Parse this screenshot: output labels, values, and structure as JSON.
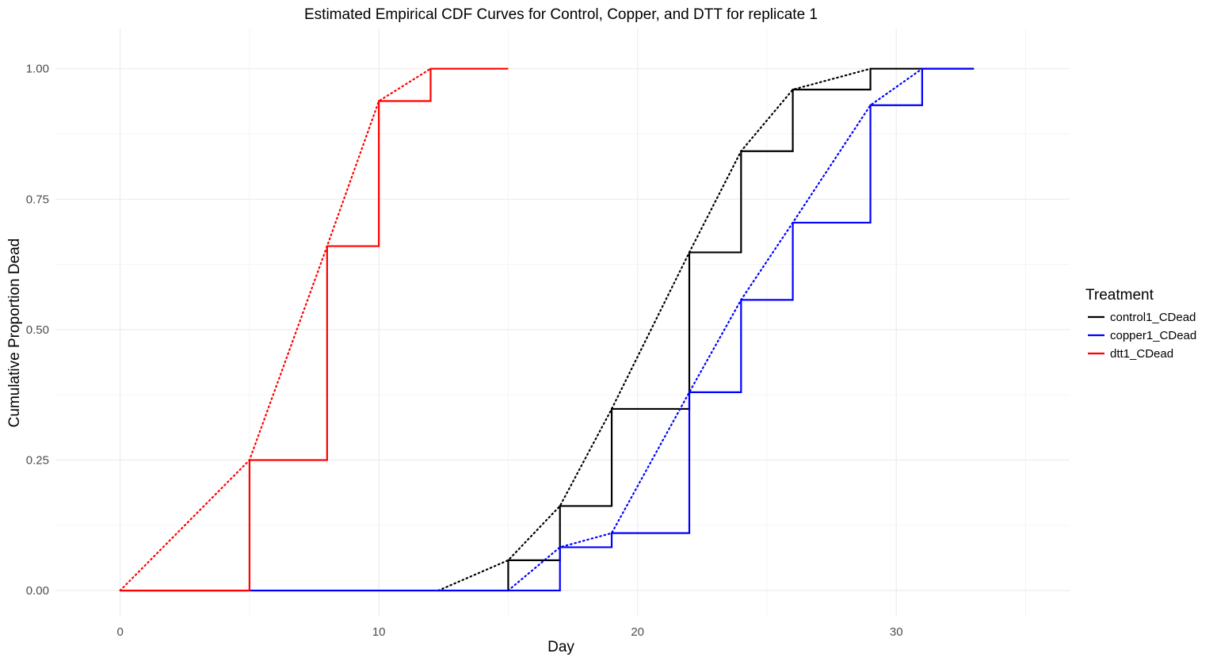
{
  "chart_data": {
    "type": "line",
    "title": "Estimated Empirical CDF Curves for Control, Copper, and DTT for replicate 1",
    "xlabel": "Day",
    "ylabel": "Cumulative Proportion Dead",
    "xlim": [
      -2.5,
      36.7
    ],
    "ylim": [
      -0.05,
      1.077
    ],
    "x_ticks": [
      0,
      10,
      20,
      30
    ],
    "x_tick_labels": [
      "0",
      "10",
      "20",
      "30"
    ],
    "y_ticks": [
      0,
      0.25,
      0.5,
      0.75,
      1.0
    ],
    "y_tick_labels": [
      "0.00",
      "0.25",
      "0.50",
      "0.75",
      "1.00"
    ],
    "grid": true,
    "legend": {
      "title": "Treatment",
      "position": "right"
    },
    "series": [
      {
        "name": "control1_CDead",
        "color": "#000000",
        "step": {
          "x": [
            0,
            15,
            17,
            19,
            22,
            24,
            26,
            29,
            33
          ],
          "y": [
            0,
            0.058,
            0.162,
            0.348,
            0.648,
            0.842,
            0.96,
            1.0,
            1.0
          ]
        },
        "dotted": {
          "x": [
            12.3,
            15,
            17,
            19,
            22,
            24,
            26,
            29
          ],
          "y": [
            0,
            0.058,
            0.162,
            0.348,
            0.648,
            0.842,
            0.96,
            1.0
          ]
        }
      },
      {
        "name": "copper1_CDead",
        "color": "#0000ff",
        "step": {
          "x": [
            0,
            17,
            19,
            22,
            24,
            26,
            29,
            31,
            33
          ],
          "y": [
            0,
            0.083,
            0.11,
            0.38,
            0.557,
            0.705,
            0.93,
            1.0,
            1.0
          ]
        },
        "dotted": {
          "x": [
            15,
            17,
            19,
            22,
            24,
            26,
            29,
            31
          ],
          "y": [
            0,
            0.083,
            0.11,
            0.38,
            0.557,
            0.705,
            0.93,
            1.0
          ]
        }
      },
      {
        "name": "dtt1_CDead",
        "color": "#ff0000",
        "step": {
          "x": [
            0,
            5,
            8,
            10,
            12,
            15
          ],
          "y": [
            0,
            0.25,
            0.66,
            0.938,
            1.0,
            1.0
          ]
        },
        "dotted": {
          "x": [
            0,
            5,
            8,
            10,
            12
          ],
          "y": [
            0,
            0.25,
            0.66,
            0.938,
            1.0
          ]
        }
      }
    ]
  }
}
